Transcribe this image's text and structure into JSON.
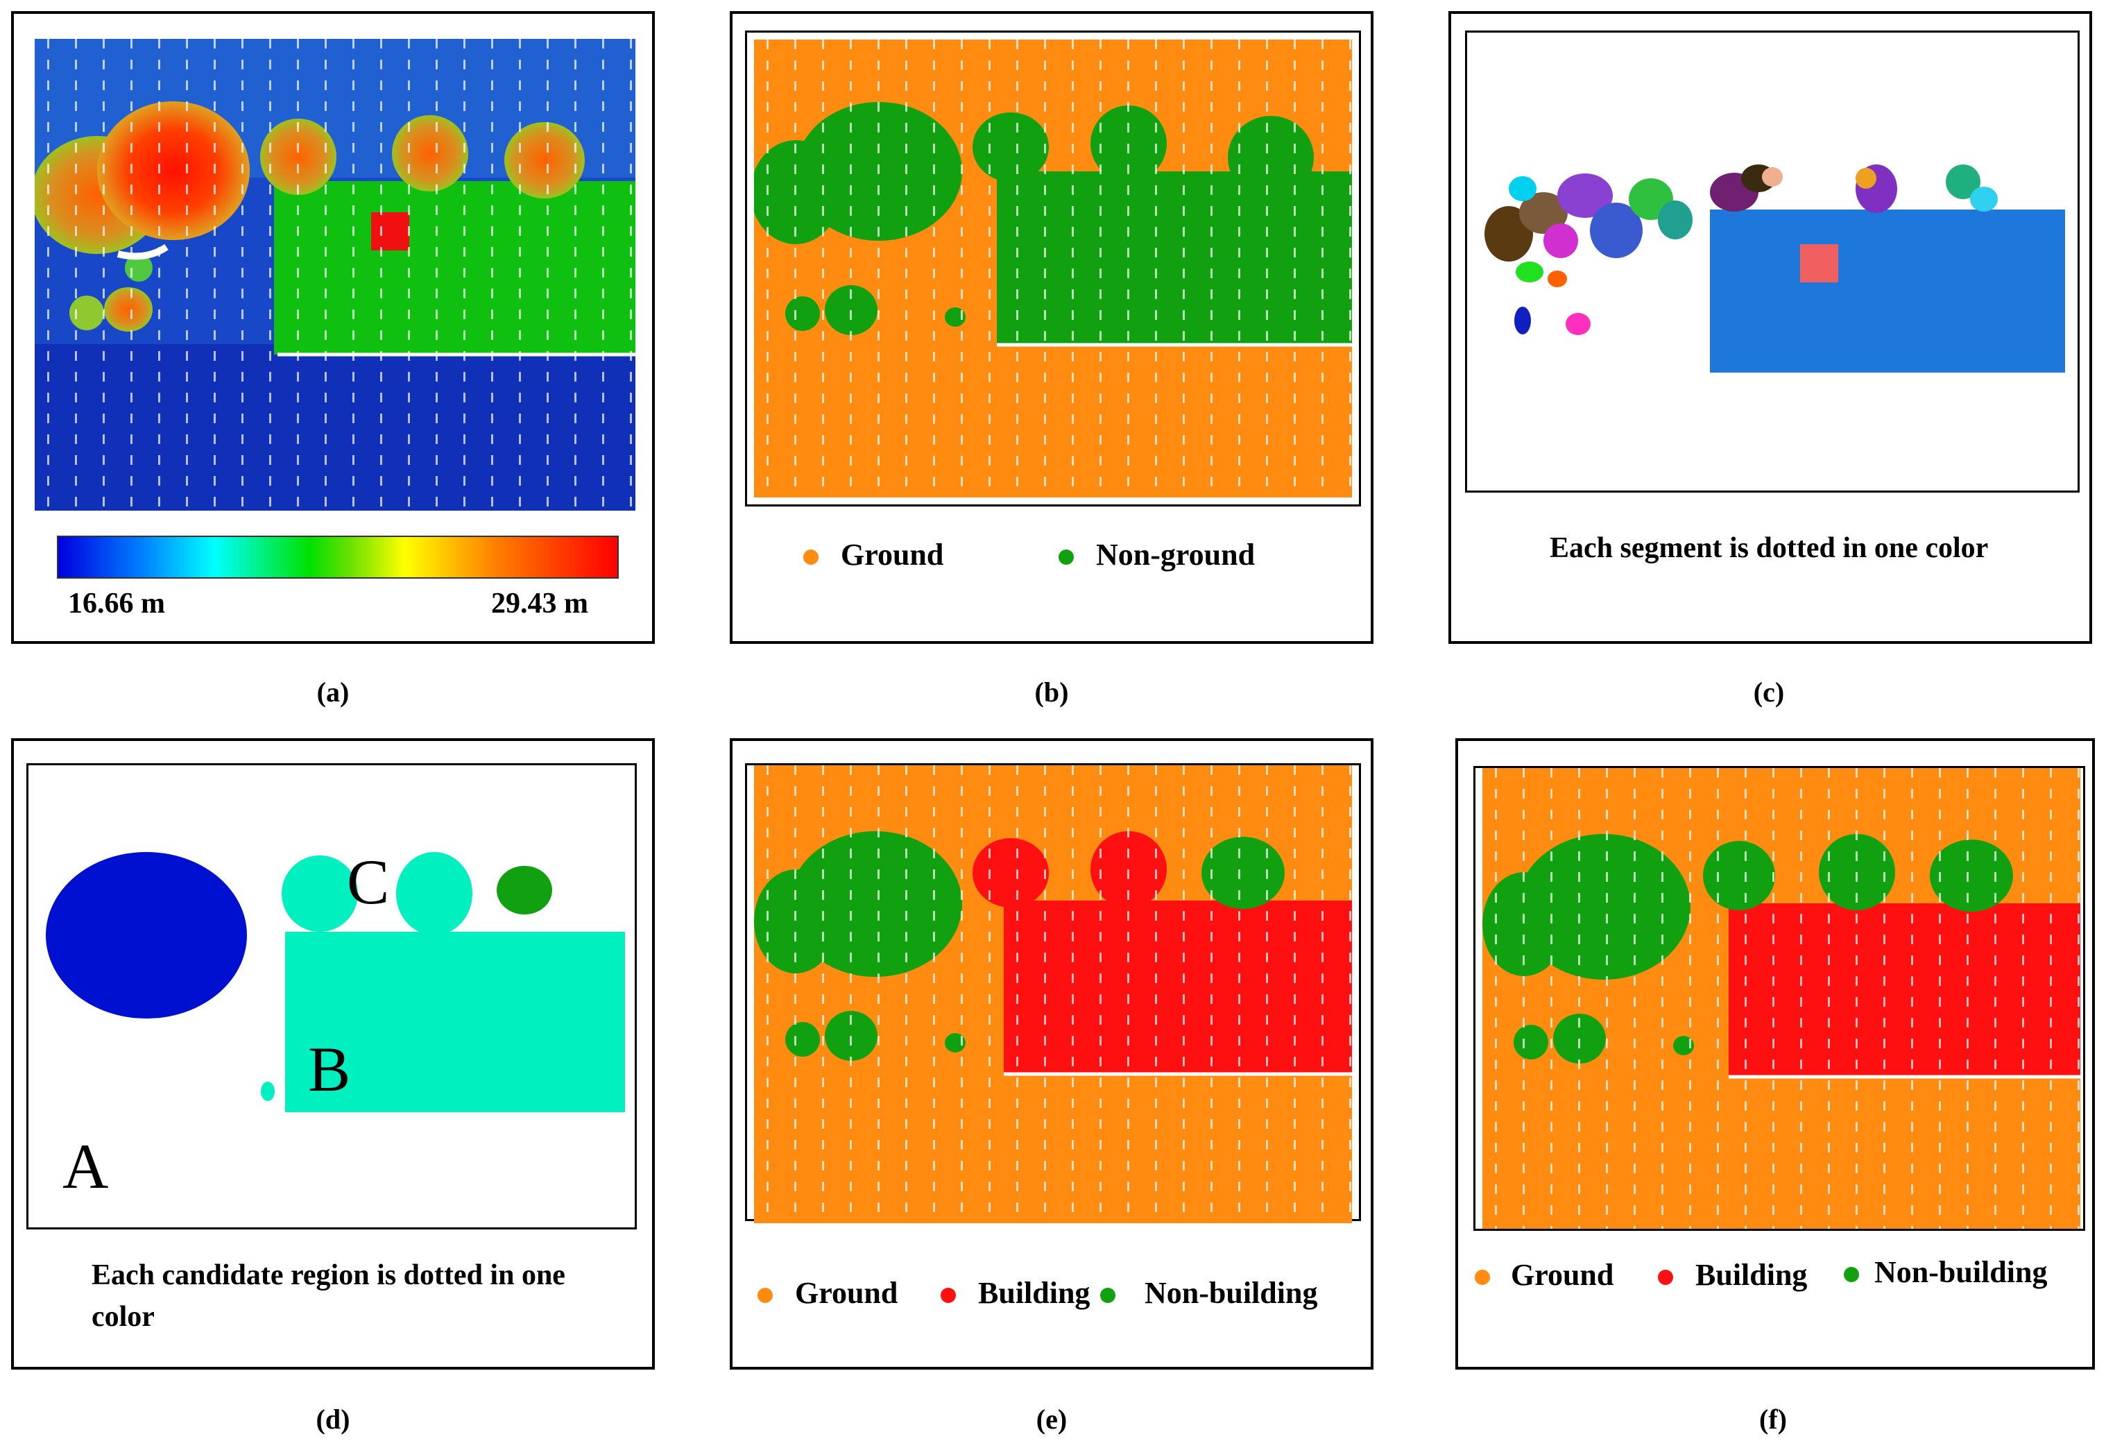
{
  "panels": {
    "a": {
      "label": "(a)",
      "colorbar": {
        "min_label": "16.66 m",
        "max_label": "29.43 m"
      }
    },
    "b": {
      "label": "(b)",
      "legend": {
        "ground": "Ground",
        "nonground": "Non-ground"
      }
    },
    "c": {
      "label": "(c)",
      "caption": "Each segment is dotted in one color"
    },
    "d": {
      "label": "(d)",
      "caption": "Each candidate region is dotted in one color",
      "region_a": "A",
      "region_b": "B",
      "region_c": "C"
    },
    "e": {
      "label": "(e)",
      "legend": {
        "ground": "Ground",
        "building": "Building",
        "nonbuilding": "Non-building"
      }
    },
    "f": {
      "label": "(f)",
      "legend": {
        "ground": "Ground",
        "building": "Building",
        "nonbuilding": "Non-building"
      }
    }
  },
  "colors": {
    "ground": "#ff8c10",
    "nonground": "#10a010",
    "building": "#ff1010",
    "low_blue": "#1030c8",
    "segment_blue": "#1e78dc",
    "candidate_cyan": "#00f0c0",
    "candidate_blue": "#0010d0"
  }
}
